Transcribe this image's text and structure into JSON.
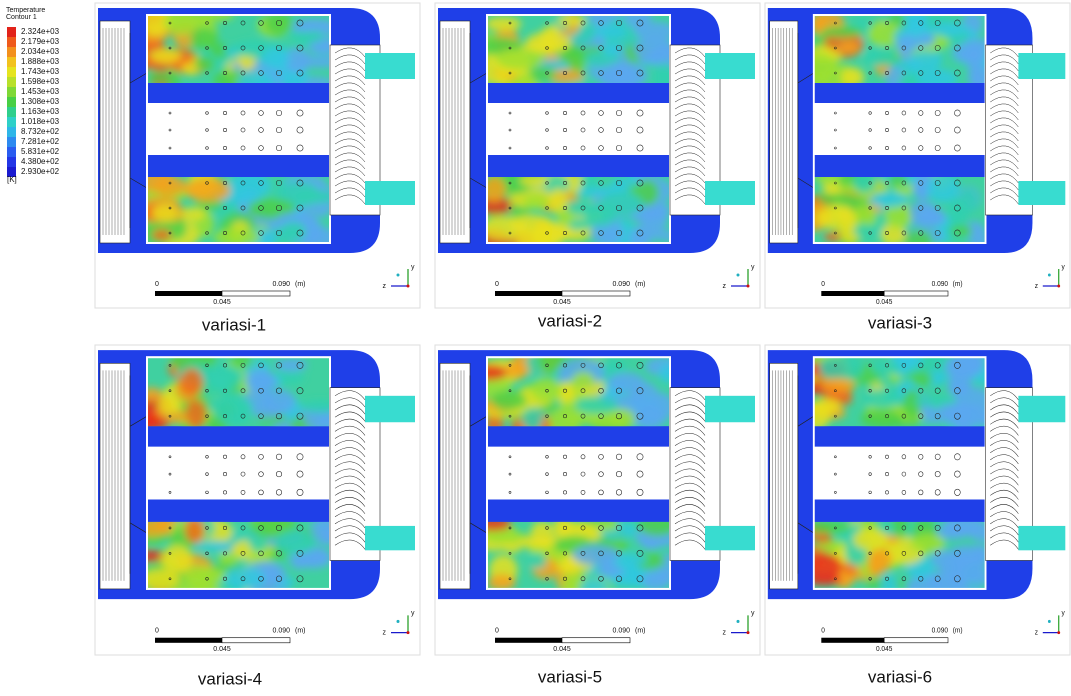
{
  "legend": {
    "title": [
      "Temperature",
      "Contour 1"
    ],
    "levels": [
      "2.324e+03",
      "2.179e+03",
      "2.034e+03",
      "1.888e+03",
      "1.743e+03",
      "1.598e+03",
      "1.453e+03",
      "1.308e+03",
      "1.163e+03",
      "1.018e+03",
      "8.732e+02",
      "7.281e+02",
      "5.831e+02",
      "4.380e+02",
      "2.930e+02"
    ],
    "unit": "[K]"
  },
  "scale": {
    "start": "0",
    "end": "0.090",
    "unit": "(m)",
    "mid": "0.045"
  },
  "axes": {
    "horizontal": "z",
    "vertical": "y"
  },
  "panels": [
    {
      "caption": "variasi-1"
    },
    {
      "caption": "variasi-2"
    },
    {
      "caption": "variasi-3"
    },
    {
      "caption": "variasi-4"
    },
    {
      "caption": "variasi-5"
    },
    {
      "caption": "variasi-6"
    }
  ]
}
